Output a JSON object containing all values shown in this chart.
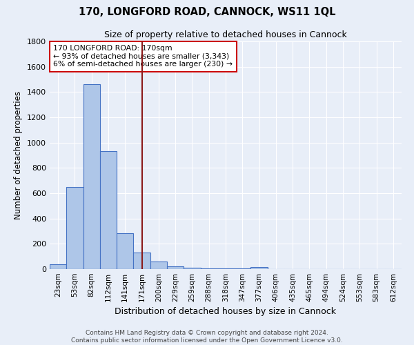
{
  "title": "170, LONGFORD ROAD, CANNOCK, WS11 1QL",
  "subtitle": "Size of property relative to detached houses in Cannock",
  "xlabel": "Distribution of detached houses by size in Cannock",
  "ylabel": "Number of detached properties",
  "footer_line1": "Contains HM Land Registry data © Crown copyright and database right 2024.",
  "footer_line2": "Contains public sector information licensed under the Open Government Licence v3.0.",
  "bin_labels": [
    "23sqm",
    "53sqm",
    "82sqm",
    "112sqm",
    "141sqm",
    "171sqm",
    "200sqm",
    "229sqm",
    "259sqm",
    "288sqm",
    "318sqm",
    "347sqm",
    "377sqm",
    "406sqm",
    "435sqm",
    "465sqm",
    "494sqm",
    "524sqm",
    "553sqm",
    "583sqm",
    "612sqm"
  ],
  "bar_values": [
    40,
    650,
    1460,
    935,
    285,
    130,
    60,
    20,
    10,
    5,
    5,
    3,
    15,
    2,
    0,
    0,
    0,
    0,
    0,
    0,
    0
  ],
  "bar_color": "#aec6e8",
  "bar_edge_color": "#4472c4",
  "background_color": "#e8eef8",
  "grid_color": "#ffffff",
  "vline_x_index": 5.0,
  "vline_color": "#8b1a1a",
  "annotation_line1": "170 LONGFORD ROAD: 170sqm",
  "annotation_line2": "← 93% of detached houses are smaller (3,343)",
  "annotation_line3": "6% of semi-detached houses are larger (230) →",
  "annotation_box_color": "#ffffff",
  "annotation_box_edge_color": "#cc0000",
  "ylim": [
    0,
    1800
  ],
  "yticks": [
    0,
    200,
    400,
    600,
    800,
    1000,
    1200,
    1400,
    1600,
    1800
  ]
}
